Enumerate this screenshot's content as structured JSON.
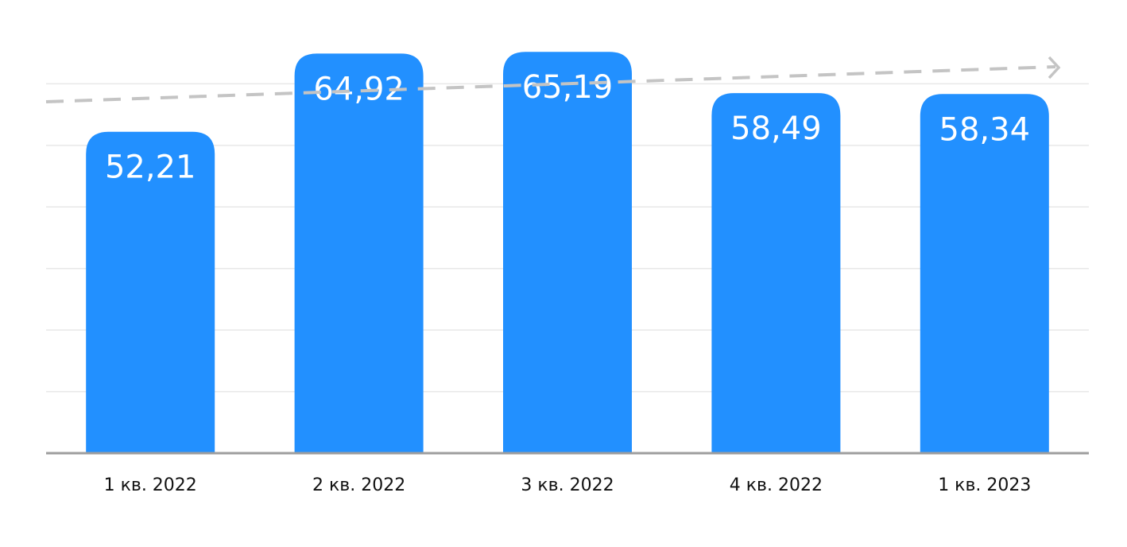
{
  "chart_data": {
    "type": "bar",
    "categories": [
      "1 кв. 2022",
      "2 кв. 2022",
      "3 кв. 2022",
      "4 кв. 2022",
      "1 кв. 2023"
    ],
    "values": [
      52.21,
      64.92,
      65.19,
      58.49,
      58.34
    ],
    "value_labels": [
      "52,21",
      "64,92",
      "65,19",
      "58,49",
      "58,34"
    ],
    "color": "#2290ff",
    "ylim": [
      0,
      70
    ],
    "yticks": [
      0,
      10,
      20,
      30,
      40,
      50,
      60
    ],
    "grid": true,
    "show_tick_labels": false
  }
}
